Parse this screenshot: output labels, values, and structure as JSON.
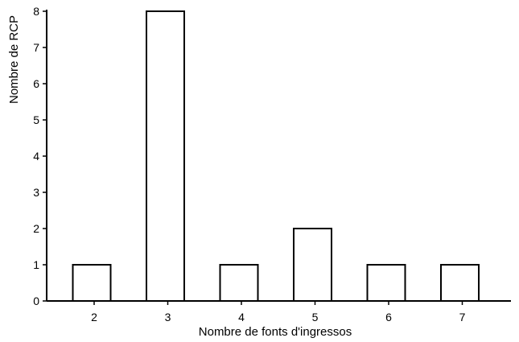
{
  "chart_data": {
    "type": "bar",
    "categories": [
      "2",
      "3",
      "4",
      "5",
      "6",
      "7"
    ],
    "values": [
      1,
      8,
      1,
      2,
      1,
      1
    ],
    "title": "",
    "xlabel": "Nombre de fonts d'ingressos",
    "ylabel": "Nombre de RCP",
    "ylim": [
      0,
      8
    ],
    "yticks": [
      "0",
      "1",
      "2",
      "3",
      "4",
      "5",
      "6",
      "7",
      "8"
    ],
    "grid": false,
    "legend": "none",
    "colors": {
      "bar_fill": "#ffffff",
      "bar_stroke": "#000000"
    }
  }
}
